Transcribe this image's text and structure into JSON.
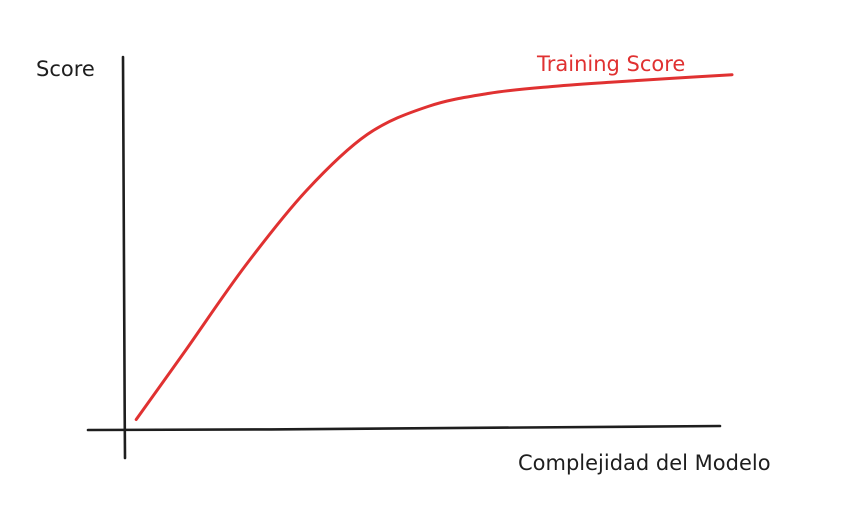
{
  "chart_data": {
    "type": "line",
    "title": "",
    "xlabel": "Complejidad del Modelo",
    "ylabel": "Score",
    "xlim": [
      0,
      100
    ],
    "ylim": [
      0,
      100
    ],
    "grid": false,
    "legend": "none",
    "series": [
      {
        "name": "Training Score",
        "color": "#e03131",
        "x": [
          2,
          10,
          20,
          30,
          40,
          50,
          60,
          70,
          80,
          90,
          100
        ],
        "y": [
          2.8,
          21,
          44,
          64,
          79,
          86.5,
          90,
          91.8,
          93,
          94,
          95
        ]
      }
    ]
  }
}
